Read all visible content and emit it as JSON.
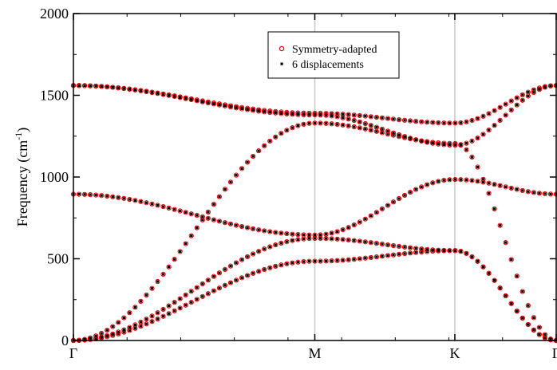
{
  "chart_data": {
    "type": "scatter",
    "ylabel": "Frequency (cm",
    "ylabel_sup": "-1",
    "ylabel_close": ")",
    "ylim": [
      0,
      2000
    ],
    "yticks": [
      0,
      500,
      1000,
      1500,
      2000
    ],
    "xlim": [
      0,
      1
    ],
    "xtick_labels": [
      {
        "label": "Γ",
        "x": 0.0
      },
      {
        "label": "M",
        "x": 0.5
      },
      {
        "label": "K",
        "x": 0.79
      },
      {
        "label": "Γ",
        "x": 1.0
      }
    ],
    "vertical_lines_at": [
      0.5,
      0.79
    ],
    "legend_position": "top-center",
    "legend": [
      {
        "label": "Symmetry-adapted",
        "marker": "open-circle",
        "color": "#e00000"
      },
      {
        "label": "6 displacements",
        "marker": "filled-square",
        "color": "#000000"
      }
    ],
    "series_points_per_branch": 87,
    "branches": [
      {
        "x": [
          0.0,
          0.5,
          0.79,
          1.0
        ],
        "y": [
          0,
          485,
          550,
          0
        ]
      },
      {
        "x": [
          0.0,
          0.5,
          0.79,
          1.0
        ],
        "y": [
          0,
          625,
          550,
          0
        ]
      },
      {
        "x": [
          0.0,
          0.5,
          0.79,
          1.0
        ],
        "y": [
          0,
          1330,
          1205,
          0
        ]
      },
      {
        "x": [
          0.0,
          0.5,
          0.79,
          1.0
        ],
        "y": [
          895,
          645,
          985,
          895
        ]
      },
      {
        "x": [
          0.0,
          0.5,
          0.79,
          1.0
        ],
        "y": [
          1560,
          1390,
          1330,
          1560
        ]
      },
      {
        "x": [
          0.0,
          0.5,
          0.79,
          1.0
        ],
        "y": [
          1560,
          1380,
          1195,
          1560
        ]
      }
    ]
  },
  "colors": {
    "symmetry_marker": "#e00000",
    "displacement_marker": "#000000",
    "vline": "#c8c8c8"
  }
}
